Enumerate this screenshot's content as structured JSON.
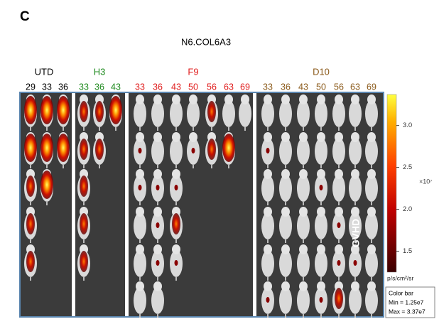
{
  "panel_label": "C",
  "title": "N6.COL6A3",
  "groups": [
    {
      "label": "UTD",
      "color": "#000000",
      "days": [
        29,
        33,
        36
      ]
    },
    {
      "label": "H3",
      "color": "#1e8a1e",
      "days": [
        33,
        36,
        43
      ]
    },
    {
      "label": "F9",
      "color": "#e01b1b",
      "days": [
        33,
        36,
        43,
        50,
        56,
        63,
        69
      ]
    },
    {
      "label": "D10",
      "color": "#8b5a1a",
      "days": [
        33,
        36,
        43,
        50,
        56,
        63,
        69
      ]
    }
  ],
  "side_label": "GVHD",
  "colorbar": {
    "range": [
      1.25,
      3.37
    ],
    "ticks": [
      {
        "value": 3.0,
        "label": "3.0"
      },
      {
        "value": 2.5,
        "label": "2.5"
      },
      {
        "value": 2.0,
        "label": "2.0"
      },
      {
        "value": 1.5,
        "label": "1.5"
      }
    ],
    "exponent": "×10⁷",
    "units": "p/s/cm²/sr"
  },
  "legend_box": {
    "title": "Color bar",
    "min": "Min = 1.25e7",
    "max": "Max = 3.37e7"
  }
}
